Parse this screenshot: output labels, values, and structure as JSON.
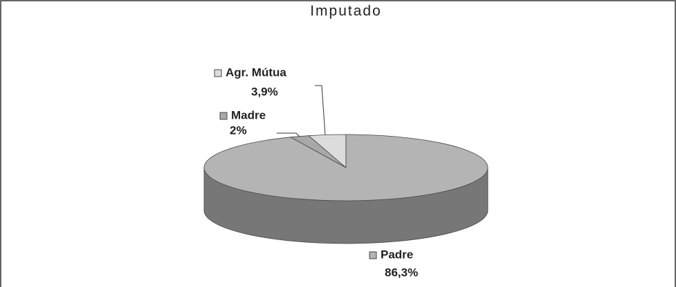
{
  "chart_data": {
    "type": "pie",
    "title": "Imputado",
    "categories": [
      "Agr. Mútua",
      "Madre",
      "Padre"
    ],
    "values": [
      3.9,
      2,
      86.3
    ],
    "value_labels": [
      "3,9%",
      "2%",
      "86,3%"
    ],
    "colors": [
      "#dcdcdc",
      "#a8a8a8",
      "#b4b4b4"
    ]
  }
}
